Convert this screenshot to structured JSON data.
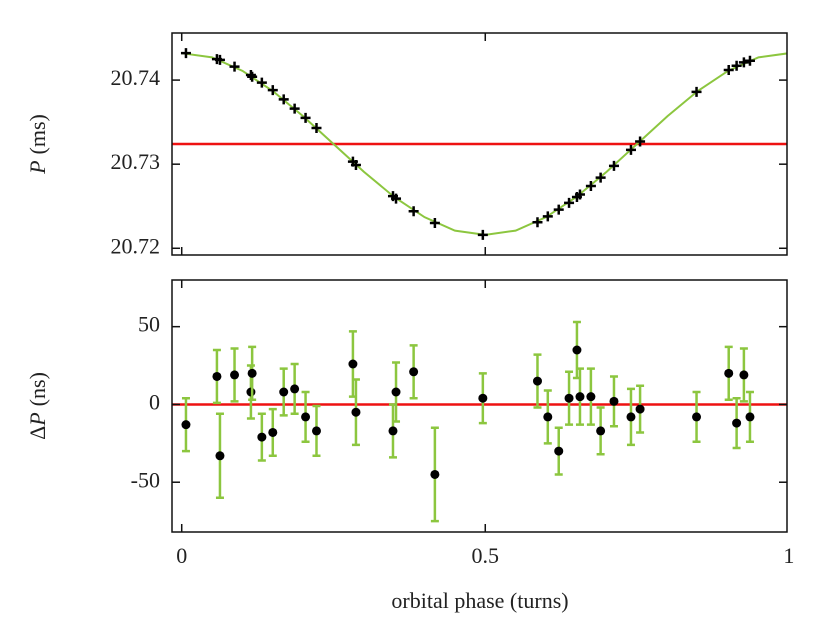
{
  "chart_data": [
    {
      "type": "scatter",
      "ylabel": [
        "P",
        "(ms)"
      ],
      "xlim": [
        -0.016,
        0.997
      ],
      "ylim": [
        20.7192,
        20.7456
      ],
      "yticks": [
        20.72,
        20.73,
        20.74
      ],
      "reference_line": {
        "value": 20.7324,
        "color": "#ee1111"
      },
      "model": {
        "color": "#8cc63f",
        "x": [
          0,
          0.05,
          0.1,
          0.15,
          0.2,
          0.25,
          0.3,
          0.35,
          0.4,
          0.45,
          0.5,
          0.55,
          0.6,
          0.65,
          0.7,
          0.75,
          0.8,
          0.85,
          0.9,
          0.95,
          1
        ],
        "values": [
          20.7432,
          20.7427,
          20.7411,
          20.7387,
          20.7357,
          20.7324,
          20.7291,
          20.7261,
          20.7237,
          20.7221,
          20.7216,
          20.7221,
          20.7237,
          20.7261,
          20.7291,
          20.7324,
          20.7357,
          20.7387,
          20.7411,
          20.7427,
          20.7432
        ]
      },
      "points": {
        "color": "#000000",
        "x": [
          0.007,
          0.058,
          0.063,
          0.087,
          0.114,
          0.116,
          0.132,
          0.15,
          0.168,
          0.186,
          0.204,
          0.222,
          0.282,
          0.287,
          0.348,
          0.353,
          0.382,
          0.417,
          0.496,
          0.586,
          0.603,
          0.621,
          0.638,
          0.651,
          0.656,
          0.674,
          0.69,
          0.712,
          0.74,
          0.755,
          0.848,
          0.901,
          0.914,
          0.926,
          0.936
        ],
        "values": [
          20.7432,
          20.7425,
          20.7424,
          20.7416,
          20.7406,
          20.7404,
          20.7397,
          20.7388,
          20.7377,
          20.7366,
          20.7355,
          20.7343,
          20.7303,
          20.7299,
          20.7262,
          20.7259,
          20.7244,
          20.723,
          20.7216,
          20.7231,
          20.7238,
          20.7246,
          20.7254,
          20.7261,
          20.7264,
          20.7274,
          20.7284,
          20.7298,
          20.7317,
          20.7327,
          20.7386,
          20.7412,
          20.7417,
          20.7421,
          20.7423
        ]
      }
    },
    {
      "type": "errorbar",
      "ylabel": [
        "Δ",
        "P",
        "(ns)"
      ],
      "xlabel": "orbital phase (turns)",
      "xlim": [
        -0.016,
        0.997
      ],
      "xticks": [
        0,
        0.5,
        1
      ],
      "ylim": [
        -82,
        80
      ],
      "yticks": [
        -50,
        0,
        50
      ],
      "reference_line": {
        "value": 0,
        "color": "#ee1111"
      },
      "points": {
        "color": "#000000",
        "error_color": "#8cc63f",
        "x": [
          0.007,
          0.058,
          0.063,
          0.087,
          0.114,
          0.116,
          0.132,
          0.15,
          0.168,
          0.186,
          0.204,
          0.222,
          0.282,
          0.287,
          0.348,
          0.353,
          0.382,
          0.417,
          0.496,
          0.586,
          0.603,
          0.621,
          0.638,
          0.651,
          0.656,
          0.674,
          0.69,
          0.712,
          0.74,
          0.755,
          0.848,
          0.901,
          0.914,
          0.926,
          0.936
        ],
        "values": [
          -13,
          18,
          -33,
          19,
          8,
          20,
          -21,
          -18,
          8,
          10,
          -8,
          -17,
          26,
          -5,
          -17,
          8,
          21,
          -45,
          4,
          15,
          -8,
          -30,
          4,
          35,
          5,
          5,
          -17,
          2,
          -8,
          -3,
          -8,
          20,
          -12,
          19,
          -8
        ],
        "errors": [
          17,
          17,
          27,
          17,
          17,
          17,
          15,
          15,
          15,
          16,
          16,
          16,
          21,
          21,
          17,
          19,
          17,
          30,
          16,
          17,
          17,
          15,
          17,
          18,
          18,
          18,
          15,
          16,
          18,
          15,
          16,
          17,
          16,
          17,
          16
        ]
      }
    }
  ]
}
